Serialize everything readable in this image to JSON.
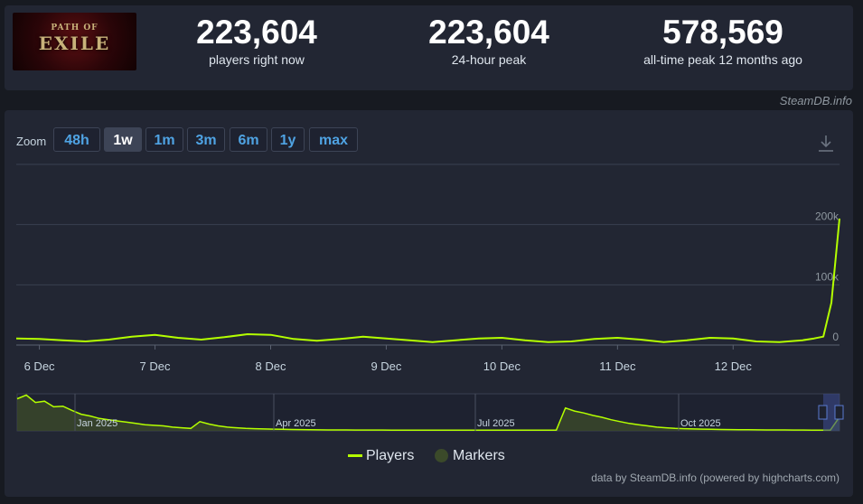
{
  "game": {
    "logo_line1": "PATH OF",
    "logo_line2": "EXILE"
  },
  "stats": [
    {
      "value": "223,604",
      "label": "players right now"
    },
    {
      "value": "223,604",
      "label": "24-hour peak"
    },
    {
      "value": "578,569",
      "label": "all-time peak 12 months ago"
    }
  ],
  "credit_top": "SteamDB.info",
  "zoom": {
    "label": "Zoom",
    "options": [
      "48h",
      "1w",
      "1m",
      "3m",
      "6m",
      "1y",
      "max"
    ],
    "active": "1w"
  },
  "icons": {
    "download": "download-icon"
  },
  "credit_bottom": "data by SteamDB.info (powered by highcharts.com)",
  "chart_data": [
    {
      "type": "line",
      "x_labels": [
        "6 Dec",
        "7 Dec",
        "8 Dec",
        "9 Dec",
        "10 Dec",
        "11 Dec",
        "12 Dec"
      ],
      "y_ticks": [
        "0",
        "100k",
        "200k"
      ],
      "ylim": [
        0,
        300000
      ],
      "grid": true,
      "series": [
        {
          "name": "Players",
          "color": "#b4ff00",
          "x": [
            5.8,
            6.0,
            6.2,
            6.4,
            6.6,
            6.8,
            7.0,
            7.2,
            7.4,
            7.6,
            7.8,
            8.0,
            8.2,
            8.4,
            8.6,
            8.8,
            9.0,
            9.2,
            9.4,
            9.6,
            9.8,
            10.0,
            10.2,
            10.4,
            10.6,
            10.8,
            11.0,
            11.2,
            11.4,
            11.6,
            11.8,
            12.0,
            12.2,
            12.4,
            12.6,
            12.7,
            12.78,
            12.85,
            12.92
          ],
          "values": [
            11000,
            10000,
            8000,
            6000,
            9000,
            14000,
            17000,
            12000,
            9000,
            13000,
            18000,
            17000,
            10000,
            7000,
            10000,
            14000,
            11000,
            8000,
            5000,
            8000,
            11000,
            12000,
            8000,
            5000,
            6000,
            10000,
            12000,
            9000,
            5000,
            8000,
            12000,
            11000,
            6000,
            5000,
            8000,
            11000,
            14000,
            70000,
            210000
          ]
        }
      ]
    },
    {
      "type": "area",
      "x_labels": [
        "Jan 2025",
        "Apr 2025",
        "Jul 2025",
        "Oct 2025"
      ],
      "ylim": [
        0,
        600000
      ],
      "series": [
        {
          "name": "Players",
          "values": [
            520000,
            580000,
            460000,
            480000,
            390000,
            400000,
            330000,
            270000,
            240000,
            200000,
            180000,
            160000,
            140000,
            120000,
            100000,
            90000,
            80000,
            60000,
            50000,
            40000,
            150000,
            110000,
            80000,
            60000,
            50000,
            40000,
            35000,
            30000,
            28000,
            25000,
            22000,
            20000,
            18000,
            16000,
            15000,
            14000,
            14000,
            13000,
            13000,
            13000,
            13000,
            12000,
            12000,
            12000,
            11000,
            11000,
            11000,
            11000,
            11000,
            11000,
            11000,
            11000,
            11000,
            11000,
            11000,
            11000,
            11000,
            11000,
            11000,
            11000,
            370000,
            320000,
            290000,
            250000,
            220000,
            180000,
            150000,
            120000,
            100000,
            80000,
            60000,
            50000,
            40000,
            35000,
            30000,
            28000,
            25000,
            22000,
            20000,
            18000,
            17000,
            16000,
            15000,
            14000,
            14000,
            13000,
            13000,
            12000,
            12000,
            11000,
            223604
          ]
        }
      ]
    }
  ],
  "legend": [
    {
      "label": "Players",
      "color": "#b4ff00"
    },
    {
      "label": "Markers",
      "color": "#3b4a2a"
    }
  ]
}
